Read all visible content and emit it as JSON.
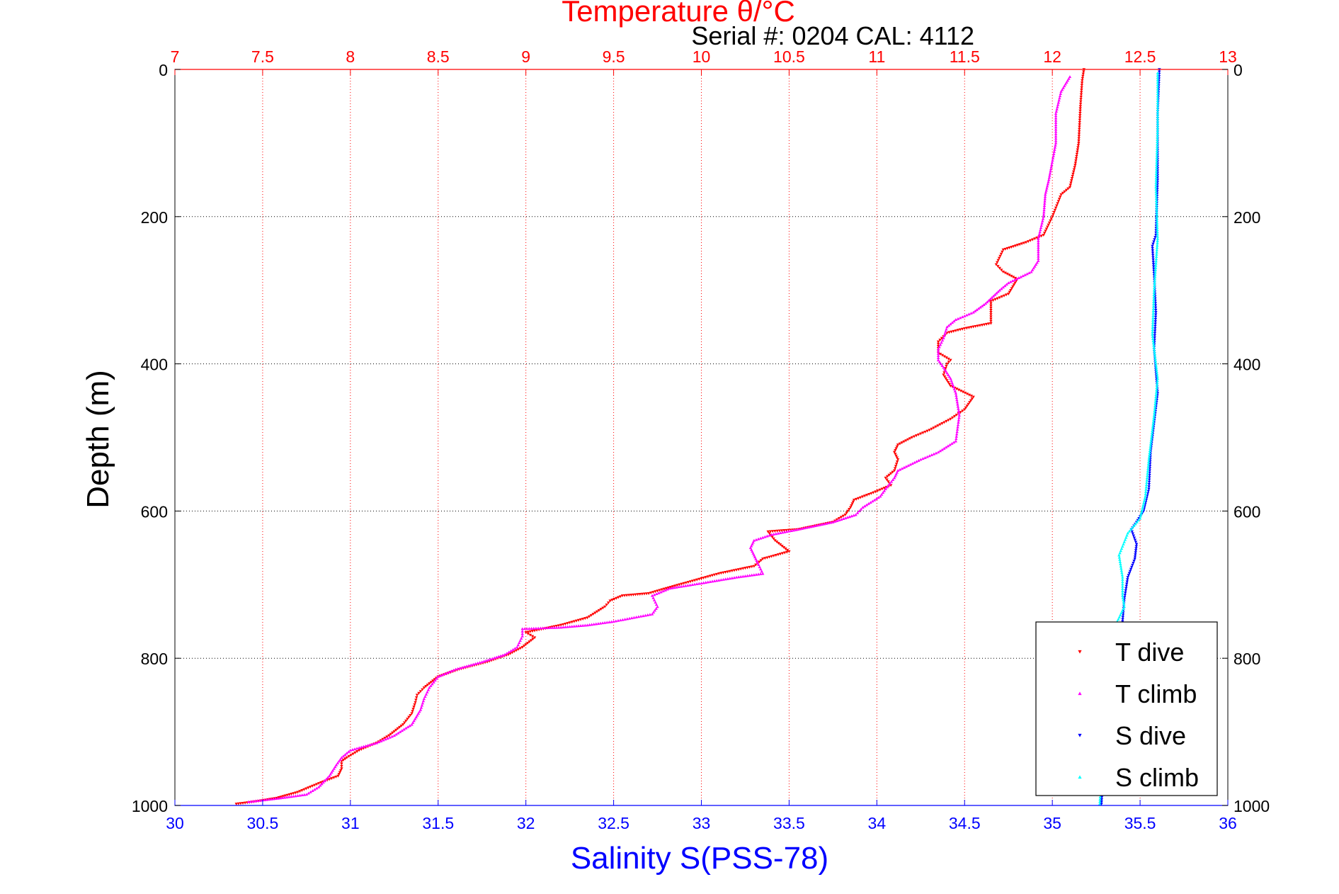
{
  "chart_data": {
    "type": "scatter",
    "title": "Temperature θ/°C",
    "subtitle": "Serial #: 0204  CAL: 4112",
    "xlabel_top": "Temperature θ/°C",
    "xlabel_bottom": "Salinity S(PSS-78)",
    "ylabel": "Depth (m)",
    "temperature_axis": {
      "range": [
        7,
        13
      ],
      "ticks": [
        7,
        7.5,
        8,
        8.5,
        9,
        9.5,
        10,
        10.5,
        11,
        11.5,
        12,
        12.5,
        13
      ],
      "color": "#ff0000"
    },
    "salinity_axis": {
      "range": [
        30,
        36
      ],
      "ticks": [
        30,
        30.5,
        31,
        31.5,
        32,
        32.5,
        33,
        33.5,
        34,
        34.5,
        35,
        35.5,
        36
      ],
      "color": "#0000ff"
    },
    "depth_axis": {
      "range": [
        0,
        1000
      ],
      "reversed": true,
      "ticks": [
        0,
        200,
        400,
        600,
        800,
        1000
      ]
    },
    "grid": true,
    "legend": {
      "position": "bottom-right",
      "entries": [
        "T dive",
        "T climb",
        "S dive",
        "S climb"
      ]
    },
    "series": [
      {
        "name": "T dive",
        "variable": "temperature",
        "color": "#ff0000",
        "marker": "triangle-down",
        "points": [
          [
            12.18,
            0
          ],
          [
            12.17,
            15
          ],
          [
            12.16,
            50
          ],
          [
            12.15,
            100
          ],
          [
            12.13,
            130
          ],
          [
            12.1,
            160
          ],
          [
            12.05,
            170
          ],
          [
            12.0,
            200
          ],
          [
            11.95,
            225
          ],
          [
            11.85,
            235
          ],
          [
            11.72,
            245
          ],
          [
            11.68,
            265
          ],
          [
            11.72,
            275
          ],
          [
            11.8,
            285
          ],
          [
            11.75,
            305
          ],
          [
            11.65,
            315
          ],
          [
            11.65,
            330
          ],
          [
            11.65,
            345
          ],
          [
            11.5,
            352
          ],
          [
            11.4,
            358
          ],
          [
            11.35,
            370
          ],
          [
            11.35,
            385
          ],
          [
            11.42,
            395
          ],
          [
            11.4,
            400
          ],
          [
            11.38,
            415
          ],
          [
            11.42,
            430
          ],
          [
            11.55,
            445
          ],
          [
            11.5,
            462
          ],
          [
            11.42,
            475
          ],
          [
            11.3,
            490
          ],
          [
            11.2,
            500
          ],
          [
            11.12,
            510
          ],
          [
            11.1,
            520
          ],
          [
            11.12,
            530
          ],
          [
            11.1,
            545
          ],
          [
            11.05,
            555
          ],
          [
            11.08,
            565
          ],
          [
            10.98,
            575
          ],
          [
            10.87,
            585
          ],
          [
            10.85,
            595
          ],
          [
            10.82,
            605
          ],
          [
            10.75,
            615
          ],
          [
            10.55,
            625
          ],
          [
            10.38,
            628
          ],
          [
            10.42,
            640
          ],
          [
            10.5,
            655
          ],
          [
            10.35,
            665
          ],
          [
            10.3,
            675
          ],
          [
            10.1,
            685
          ],
          [
            9.95,
            695
          ],
          [
            9.8,
            705
          ],
          [
            9.7,
            712
          ],
          [
            9.55,
            715
          ],
          [
            9.48,
            722
          ],
          [
            9.45,
            730
          ],
          [
            9.35,
            745
          ],
          [
            9.2,
            755
          ],
          [
            9.0,
            765
          ],
          [
            9.05,
            772
          ],
          [
            8.98,
            785
          ],
          [
            8.9,
            795
          ],
          [
            8.78,
            805
          ],
          [
            8.62,
            815
          ],
          [
            8.5,
            825
          ],
          [
            8.42,
            840
          ],
          [
            8.38,
            850
          ],
          [
            8.37,
            860
          ],
          [
            8.35,
            875
          ],
          [
            8.3,
            890
          ],
          [
            8.22,
            905
          ],
          [
            8.15,
            915
          ],
          [
            8.05,
            925
          ],
          [
            7.98,
            935
          ],
          [
            7.95,
            940
          ],
          [
            7.95,
            950
          ],
          [
            7.93,
            960
          ],
          [
            7.82,
            970
          ],
          [
            7.7,
            982
          ],
          [
            7.58,
            990
          ],
          [
            7.45,
            995
          ],
          [
            7.35,
            998
          ]
        ]
      },
      {
        "name": "T climb",
        "variable": "temperature",
        "color": "#ff00ff",
        "marker": "triangle-up",
        "points": [
          [
            12.1,
            10
          ],
          [
            12.05,
            30
          ],
          [
            12.02,
            60
          ],
          [
            12.02,
            100
          ],
          [
            11.98,
            150
          ],
          [
            11.96,
            170
          ],
          [
            11.95,
            200
          ],
          [
            11.92,
            230
          ],
          [
            11.92,
            260
          ],
          [
            11.88,
            275
          ],
          [
            11.75,
            290
          ],
          [
            11.7,
            300
          ],
          [
            11.62,
            318
          ],
          [
            11.55,
            330
          ],
          [
            11.45,
            340
          ],
          [
            11.4,
            350
          ],
          [
            11.38,
            365
          ],
          [
            11.35,
            380
          ],
          [
            11.35,
            395
          ],
          [
            11.38,
            405
          ],
          [
            11.42,
            420
          ],
          [
            11.45,
            440
          ],
          [
            11.47,
            470
          ],
          [
            11.45,
            505
          ],
          [
            11.35,
            520
          ],
          [
            11.25,
            530
          ],
          [
            11.12,
            545
          ],
          [
            11.1,
            555
          ],
          [
            11.05,
            570
          ],
          [
            11.02,
            580
          ],
          [
            10.92,
            595
          ],
          [
            10.88,
            605
          ],
          [
            10.75,
            615
          ],
          [
            10.55,
            625
          ],
          [
            10.4,
            632
          ],
          [
            10.3,
            640
          ],
          [
            10.28,
            650
          ],
          [
            10.3,
            660
          ],
          [
            10.32,
            670
          ],
          [
            10.35,
            685
          ],
          [
            10.2,
            690
          ],
          [
            10.0,
            698
          ],
          [
            9.82,
            705
          ],
          [
            9.72,
            715
          ],
          [
            9.75,
            730
          ],
          [
            9.72,
            740
          ],
          [
            9.5,
            750
          ],
          [
            9.35,
            755
          ],
          [
            9.2,
            758
          ],
          [
            8.98,
            760
          ],
          [
            8.98,
            770
          ],
          [
            8.95,
            785
          ],
          [
            8.88,
            795
          ],
          [
            8.75,
            805
          ],
          [
            8.6,
            815
          ],
          [
            8.5,
            825
          ],
          [
            8.45,
            840
          ],
          [
            8.42,
            855
          ],
          [
            8.4,
            870
          ],
          [
            8.35,
            890
          ],
          [
            8.25,
            905
          ],
          [
            8.15,
            915
          ],
          [
            8.0,
            925
          ],
          [
            7.95,
            935
          ],
          [
            7.92,
            945
          ],
          [
            7.88,
            960
          ],
          [
            7.82,
            975
          ],
          [
            7.75,
            985
          ],
          [
            7.6,
            990
          ],
          [
            7.42,
            995
          ]
        ]
      },
      {
        "name": "S dive",
        "variable": "salinity",
        "color": "#0000ff",
        "marker": "triangle-down",
        "points": [
          [
            35.61,
            0
          ],
          [
            35.6,
            60
          ],
          [
            35.6,
            150
          ],
          [
            35.59,
            225
          ],
          [
            35.57,
            240
          ],
          [
            35.58,
            280
          ],
          [
            35.59,
            330
          ],
          [
            35.58,
            380
          ],
          [
            35.6,
            440
          ],
          [
            35.58,
            480
          ],
          [
            35.56,
            520
          ],
          [
            35.55,
            570
          ],
          [
            35.52,
            600
          ],
          [
            35.48,
            615
          ],
          [
            35.45,
            625
          ],
          [
            35.48,
            645
          ],
          [
            35.47,
            665
          ],
          [
            35.43,
            690
          ],
          [
            35.41,
            720
          ],
          [
            35.4,
            750
          ],
          [
            35.38,
            790
          ],
          [
            35.34,
            850
          ],
          [
            35.3,
            900
          ],
          [
            35.29,
            950
          ],
          [
            35.28,
            998
          ]
        ]
      },
      {
        "name": "S climb",
        "variable": "salinity",
        "color": "#00ffff",
        "marker": "triangle-up",
        "points": [
          [
            35.6,
            5
          ],
          [
            35.6,
            80
          ],
          [
            35.59,
            160
          ],
          [
            35.6,
            230
          ],
          [
            35.58,
            300
          ],
          [
            35.57,
            360
          ],
          [
            35.6,
            420
          ],
          [
            35.58,
            470
          ],
          [
            35.55,
            530
          ],
          [
            35.53,
            580
          ],
          [
            35.5,
            610
          ],
          [
            35.43,
            630
          ],
          [
            35.38,
            660
          ],
          [
            35.4,
            690
          ],
          [
            35.4,
            715
          ],
          [
            35.41,
            730
          ],
          [
            35.37,
            750
          ],
          [
            35.34,
            790
          ],
          [
            35.31,
            850
          ],
          [
            35.29,
            910
          ],
          [
            35.28,
            960
          ],
          [
            35.27,
            998
          ]
        ]
      }
    ]
  }
}
